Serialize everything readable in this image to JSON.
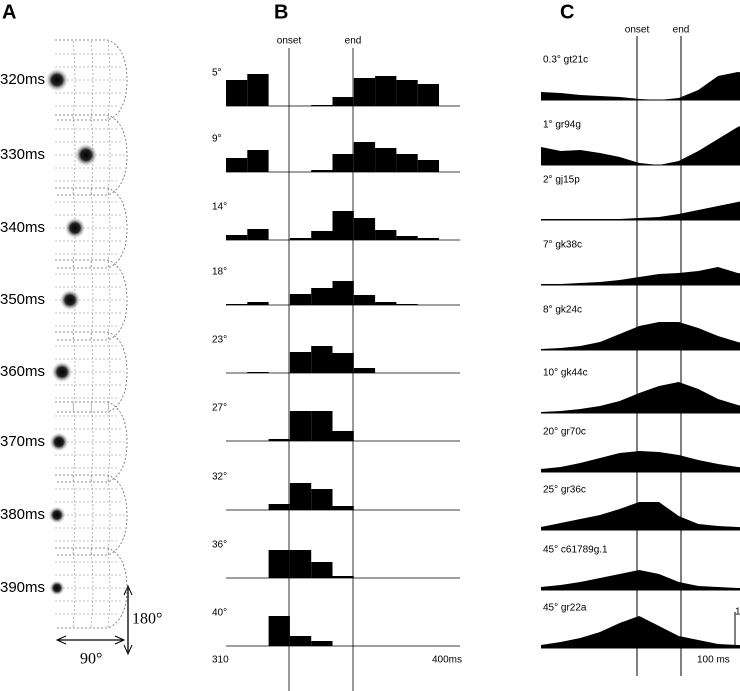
{
  "panel_labels": {
    "a": "A",
    "b": "B",
    "c": "C"
  },
  "panel_a": {
    "frames": [
      "320ms",
      "330ms",
      "340ms",
      "350ms",
      "360ms",
      "370ms",
      "380ms",
      "390ms"
    ],
    "vertical_label": "180°",
    "horizontal_label": "90°"
  },
  "chart_data": [
    {
      "type": "bar",
      "markers": [
        "onset",
        "end"
      ],
      "x_labels": [
        "310",
        "400ms"
      ],
      "rows": [
        {
          "name": "5°",
          "values": [
            26,
            32,
            0,
            0,
            1,
            9,
            28,
            30,
            26,
            22
          ]
        },
        {
          "name": "9°",
          "values": [
            14,
            22,
            0,
            0,
            2,
            18,
            30,
            24,
            18,
            12
          ]
        },
        {
          "name": "14°",
          "values": [
            5,
            11,
            0,
            2,
            9,
            29,
            22,
            10,
            4,
            2
          ]
        },
        {
          "name": "18°",
          "values": [
            1,
            3,
            0,
            11,
            17,
            24,
            10,
            3,
            1,
            0
          ]
        },
        {
          "name": "23°",
          "values": [
            0,
            1,
            0,
            21,
            27,
            20,
            5,
            0,
            0,
            0
          ]
        },
        {
          "name": "27°",
          "values": [
            0,
            0,
            2,
            30,
            30,
            10,
            0,
            0,
            0,
            0
          ]
        },
        {
          "name": "32°",
          "values": [
            0,
            0,
            6,
            27,
            21,
            4,
            0,
            0,
            0,
            0
          ]
        },
        {
          "name": "36°",
          "values": [
            0,
            0,
            28,
            28,
            16,
            2,
            0,
            0,
            0,
            0
          ]
        },
        {
          "name": "40°",
          "values": [
            0,
            0,
            30,
            10,
            5,
            0,
            0,
            0,
            0,
            0
          ]
        }
      ]
    },
    {
      "type": "area",
      "markers": [
        "onset",
        "end"
      ],
      "scale_labels": [
        "100 ms",
        "1"
      ],
      "rows": [
        {
          "name": "0.3° gt21c",
          "values": [
            8,
            7,
            5,
            4,
            3,
            1,
            0,
            2,
            10,
            24,
            28,
            26,
            24
          ]
        },
        {
          "name": "1° gr94g",
          "values": [
            18,
            14,
            15,
            12,
            8,
            2,
            0,
            4,
            14,
            26,
            38,
            45,
            50
          ]
        },
        {
          "name": "2° gj15p",
          "values": [
            1,
            1,
            1,
            1,
            1,
            2,
            3,
            6,
            10,
            14,
            18,
            22,
            24
          ]
        },
        {
          "name": "7° gk38c",
          "values": [
            1,
            1,
            2,
            3,
            5,
            8,
            11,
            12,
            14,
            18,
            12,
            10,
            9
          ]
        },
        {
          "name": "8° gk24c",
          "values": [
            1,
            2,
            4,
            8,
            16,
            24,
            28,
            28,
            22,
            14,
            8,
            4,
            3
          ]
        },
        {
          "name": "10° gk44c",
          "values": [
            1,
            2,
            4,
            7,
            12,
            20,
            27,
            31,
            24,
            14,
            8,
            4,
            3
          ]
        },
        {
          "name": "20° gr70c",
          "values": [
            3,
            5,
            9,
            14,
            19,
            21,
            20,
            17,
            12,
            8,
            5,
            3,
            2
          ]
        },
        {
          "name": "25° gr36c",
          "values": [
            3,
            7,
            11,
            15,
            21,
            28,
            28,
            14,
            6,
            4,
            3,
            2,
            1
          ]
        },
        {
          "name": "45° c61789g.1",
          "values": [
            3,
            5,
            8,
            12,
            16,
            20,
            16,
            8,
            4,
            3,
            2,
            2,
            1
          ]
        },
        {
          "name": "45° gr22a",
          "values": [
            3,
            6,
            10,
            16,
            25,
            32,
            22,
            12,
            8,
            4,
            3,
            2,
            1
          ]
        }
      ]
    }
  ]
}
